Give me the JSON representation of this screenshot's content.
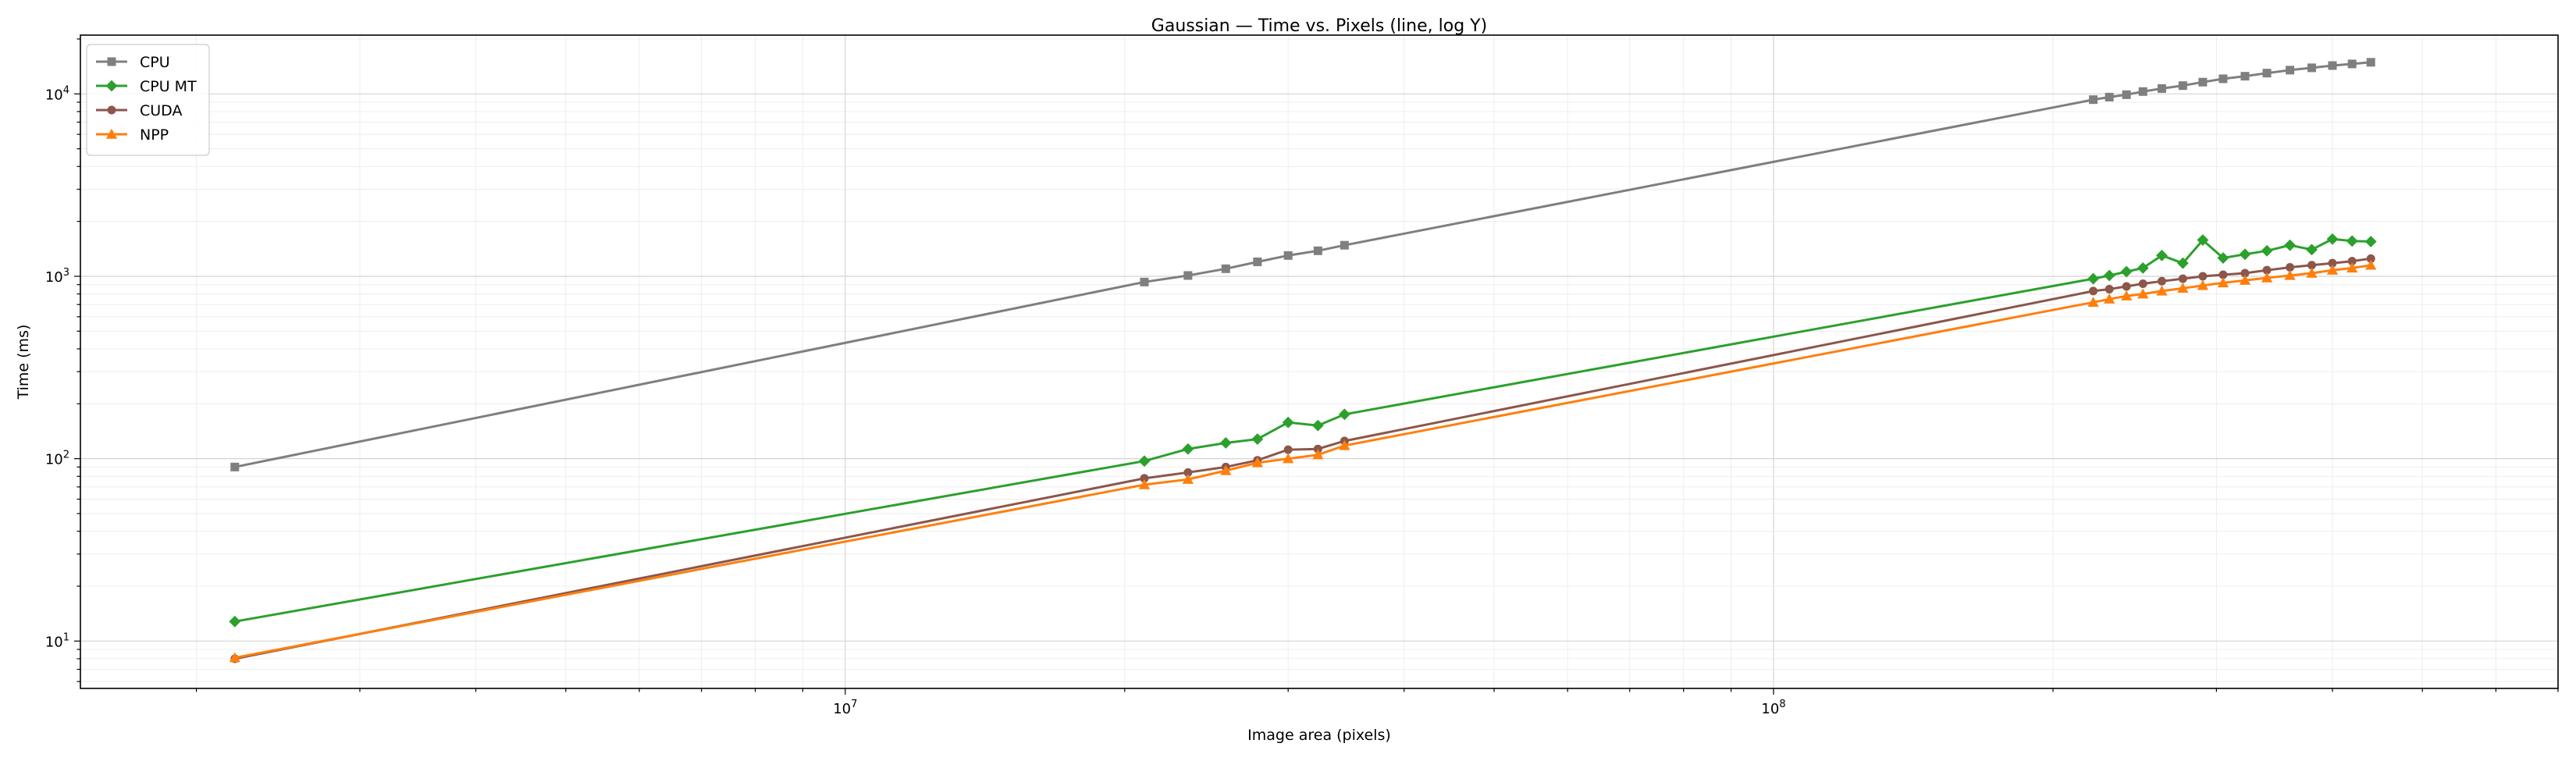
{
  "chart_data": {
    "type": "line",
    "title": "Gaussian — Time vs. Pixels (line, log Y)",
    "xlabel": "Image area (pixels)",
    "ylabel": "Time (ms)",
    "xscale": "log",
    "yscale": "log",
    "xlim": [
      1500000,
      700000000
    ],
    "ylim": [
      5.5,
      21000
    ],
    "x_ticks": [
      {
        "value": 10000000,
        "base": "10",
        "exp": "7"
      },
      {
        "value": 100000000,
        "base": "10",
        "exp": "8"
      }
    ],
    "y_ticks": [
      {
        "value": 10,
        "base": "10",
        "exp": "1"
      },
      {
        "value": 100,
        "base": "10",
        "exp": "2"
      },
      {
        "value": 1000,
        "base": "10",
        "exp": "3"
      },
      {
        "value": 10000,
        "base": "10",
        "exp": "4"
      }
    ],
    "grid": true,
    "legend_position": "top-left",
    "x": [
      2200000,
      21000000,
      23400000,
      25700000,
      27800000,
      30000000,
      32300000,
      34500000,
      221000000,
      230000000,
      240000000,
      250000000,
      262000000,
      276000000,
      290000000,
      305000000,
      322000000,
      340000000,
      360000000,
      380000000,
      400000000,
      420000000,
      440000000
    ],
    "series": [
      {
        "name": "CPU",
        "color": "#7f7f7f",
        "marker": "square",
        "values": [
          90,
          930,
          1010,
          1100,
          1200,
          1300,
          1380,
          1480,
          9300,
          9600,
          9900,
          10300,
          10700,
          11100,
          11600,
          12100,
          12500,
          13000,
          13500,
          13900,
          14300,
          14600,
          14900
        ]
      },
      {
        "name": "CPU MT",
        "color": "#2ca02c",
        "marker": "diamond",
        "values": [
          12.8,
          97,
          113,
          122,
          128,
          158,
          152,
          175,
          970,
          1010,
          1060,
          1110,
          1300,
          1180,
          1580,
          1260,
          1320,
          1380,
          1480,
          1400,
          1600,
          1560,
          1550
        ]
      },
      {
        "name": "CUDA",
        "color": "#8c564b",
        "marker": "circle",
        "values": [
          8.0,
          78,
          84,
          90,
          98,
          112,
          113,
          125,
          830,
          850,
          880,
          910,
          940,
          970,
          1000,
          1020,
          1040,
          1080,
          1120,
          1150,
          1180,
          1210,
          1250
        ]
      },
      {
        "name": "NPP",
        "color": "#ff7f0e",
        "marker": "triangle",
        "values": [
          8.1,
          72,
          77,
          86,
          95,
          100,
          105,
          118,
          720,
          750,
          780,
          800,
          830,
          860,
          890,
          920,
          950,
          980,
          1010,
          1040,
          1080,
          1110,
          1150
        ]
      }
    ]
  }
}
